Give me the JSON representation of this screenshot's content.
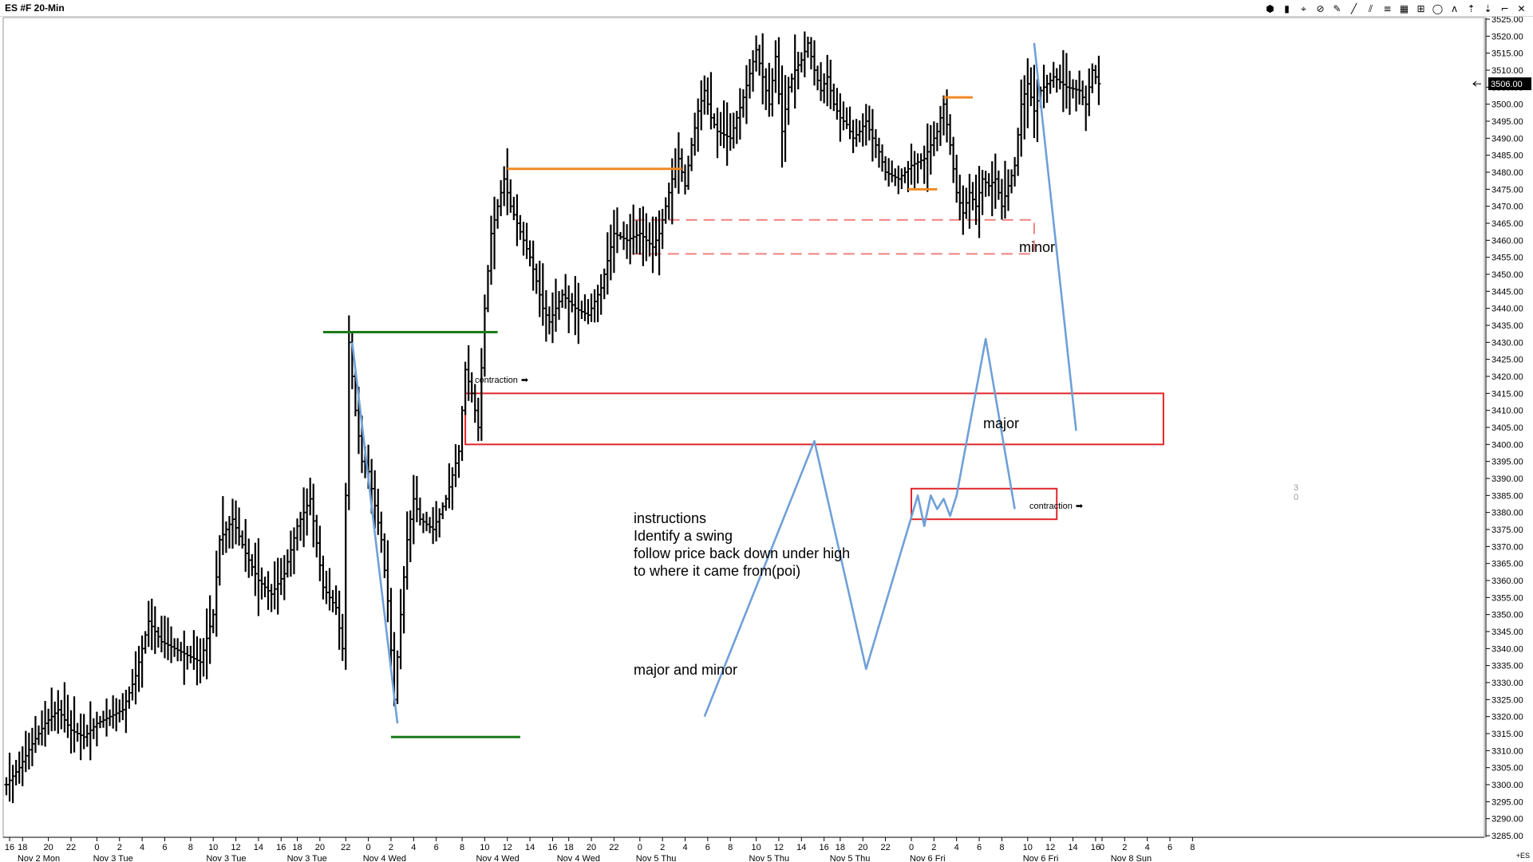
{
  "window": {
    "title": "ES #F 20-Min",
    "toolbar_icons": [
      "palette-icon",
      "candle-icon",
      "cursor-icon",
      "stop-icon",
      "pencil-icon",
      "trendline-icon",
      "channel-icon",
      "parallel-lines-icon",
      "grid-icon",
      "fibonacci-icon",
      "circle-icon",
      "zigzag-icon",
      "arrow-up-icon",
      "arrow-down-icon",
      "bracket-icon",
      "close-icon"
    ],
    "toolbar_glyphs": [
      "⬢",
      "▮",
      "⌖",
      "⊘",
      "✎",
      "╱",
      "⫽",
      "≡",
      "▦",
      "⊞",
      "◯",
      "ᴧ",
      "⇡",
      "⇣",
      "⌐",
      "✕"
    ]
  },
  "annotations": {
    "contraction_left": "contraction",
    "contraction_right": "contraction",
    "major": "major",
    "minor": "minor",
    "instructions": [
      "instructions",
      "Identify a swing",
      "follow price back down under high",
      "to where it came from(poi)"
    ],
    "major_and_minor": "major and minor",
    "scale_side": [
      "3",
      "0"
    ],
    "corner": "+ES"
  },
  "colors": {
    "bars": "#000000",
    "swing_line": "#6fa0d8",
    "green_level": "#1a7a1a",
    "orange_level": "#f08a24",
    "major_box": "#e0262a",
    "minor_box": "#f08080",
    "current_price_bg": "#000000"
  },
  "chart_data": {
    "type": "ohlc-bar",
    "instrument": "ES #F",
    "timeframe": "20-Min",
    "y_axis": {
      "min": 3285,
      "max": 3525,
      "tick_step": 5,
      "ticks": [
        3285,
        3290,
        3295,
        3300,
        3305,
        3310,
        3315,
        3320,
        3325,
        3330,
        3335,
        3340,
        3345,
        3350,
        3355,
        3360,
        3365,
        3370,
        3375,
        3380,
        3385,
        3390,
        3395,
        3400,
        3405,
        3410,
        3415,
        3420,
        3425,
        3430,
        3435,
        3440,
        3445,
        3450,
        3455,
        3460,
        3465,
        3470,
        3475,
        3480,
        3485,
        3490,
        3495,
        3500,
        3505,
        3510,
        3515,
        3520,
        3525
      ],
      "tick_labels": [
        "3285.00",
        "3290.00",
        "3295.00",
        "3300.00",
        "3305.00",
        "3310.00",
        "3315.00",
        "3320.00",
        "3325.00",
        "3330.00",
        "3335.00",
        "3340.00",
        "3345.00",
        "3350.00",
        "3355.00",
        "3360.00",
        "3365.00",
        "3370.00",
        "3375.00",
        "3380.00",
        "3385.00",
        "3390.00",
        "3395.00",
        "3400.00",
        "3405.00",
        "3410.00",
        "3415.00",
        "3420.00",
        "3425.00",
        "3430.00",
        "3435.00",
        "3440.00",
        "3445.00",
        "3450.00",
        "3455.00",
        "3460.00",
        "3465.00",
        "3470.00",
        "3475.00",
        "3480.00",
        "3485.00",
        "3490.00",
        "3495.00",
        "3500.00",
        "3505.00",
        "3510.00",
        "3515.00",
        "3520.00",
        "3525.00"
      ],
      "current_price": 3506,
      "current_price_label": "3506.00"
    },
    "x_axis": {
      "hour_ticks": [
        {
          "bar": 1,
          "label": "16"
        },
        {
          "bar": 5,
          "label": "18"
        },
        {
          "bar": 13,
          "label": "20"
        },
        {
          "bar": 20,
          "label": "22"
        },
        {
          "bar": 28,
          "label": "0"
        },
        {
          "bar": 35,
          "label": "2"
        },
        {
          "bar": 42,
          "label": "4"
        },
        {
          "bar": 49,
          "label": "6"
        },
        {
          "bar": 57,
          "label": "8"
        },
        {
          "bar": 64,
          "label": "10"
        },
        {
          "bar": 71,
          "label": "12"
        },
        {
          "bar": 78,
          "label": "14"
        },
        {
          "bar": 85,
          "label": "16"
        },
        {
          "bar": 90,
          "label": "18"
        },
        {
          "bar": 97,
          "label": "20"
        },
        {
          "bar": 105,
          "label": "22"
        },
        {
          "bar": 112,
          "label": "0"
        },
        {
          "bar": 119,
          "label": "2"
        },
        {
          "bar": 126,
          "label": "4"
        },
        {
          "bar": 133,
          "label": "6"
        },
        {
          "bar": 141,
          "label": "8"
        },
        {
          "bar": 148,
          "label": "10"
        },
        {
          "bar": 155,
          "label": "12"
        },
        {
          "bar": 162,
          "label": "14"
        },
        {
          "bar": 169,
          "label": "16"
        },
        {
          "bar": 174,
          "label": "18"
        },
        {
          "bar": 181,
          "label": "20"
        },
        {
          "bar": 188,
          "label": "22"
        },
        {
          "bar": 196,
          "label": "0"
        },
        {
          "bar": 203,
          "label": "2"
        },
        {
          "bar": 210,
          "label": "4"
        },
        {
          "bar": 217,
          "label": "6"
        },
        {
          "bar": 224,
          "label": "8"
        },
        {
          "bar": 232,
          "label": "10"
        },
        {
          "bar": 239,
          "label": "12"
        },
        {
          "bar": 246,
          "label": "14"
        },
        {
          "bar": 253,
          "label": "16"
        },
        {
          "bar": 258,
          "label": "18"
        },
        {
          "bar": 265,
          "label": "20"
        },
        {
          "bar": 272,
          "label": "22"
        },
        {
          "bar": 280,
          "label": "0"
        },
        {
          "bar": 287,
          "label": "2"
        },
        {
          "bar": 294,
          "label": "4"
        },
        {
          "bar": 301,
          "label": "6"
        },
        {
          "bar": 308,
          "label": "8"
        },
        {
          "bar": 316,
          "label": "10"
        },
        {
          "bar": 323,
          "label": "12"
        },
        {
          "bar": 330,
          "label": "14"
        },
        {
          "bar": 337,
          "label": "16"
        },
        {
          "bar": 339,
          "label": "0"
        },
        {
          "bar": 346,
          "label": "2"
        },
        {
          "bar": 353,
          "label": "4"
        },
        {
          "bar": 360,
          "label": "6"
        },
        {
          "bar": 367,
          "label": "8"
        }
      ],
      "date_labels": [
        {
          "bar": 10,
          "label": "Nov 2 Mon"
        },
        {
          "bar": 33,
          "label": "Nov 3 Tue"
        },
        {
          "bar": 68,
          "label": "Nov 3 Tue"
        },
        {
          "bar": 93,
          "label": "Nov 3 Tue"
        },
        {
          "bar": 117,
          "label": "Nov 4 Wed"
        },
        {
          "bar": 152,
          "label": "Nov 4 Wed"
        },
        {
          "bar": 177,
          "label": "Nov 4 Wed"
        },
        {
          "bar": 201,
          "label": "Nov 5 Thu"
        },
        {
          "bar": 236,
          "label": "Nov 5 Thu"
        },
        {
          "bar": 261,
          "label": "Nov 5 Thu"
        },
        {
          "bar": 285,
          "label": "Nov 6 Fri"
        },
        {
          "bar": 320,
          "label": "Nov 6 Fri"
        },
        {
          "bar": 348,
          "label": "Nov 8 Sun"
        }
      ]
    },
    "price_path": [
      [
        0,
        3300
      ],
      [
        4,
        3305
      ],
      [
        8,
        3312
      ],
      [
        12,
        3318
      ],
      [
        16,
        3322
      ],
      [
        20,
        3316
      ],
      [
        24,
        3314
      ],
      [
        28,
        3318
      ],
      [
        32,
        3320
      ],
      [
        36,
        3322
      ],
      [
        40,
        3332
      ],
      [
        44,
        3348
      ],
      [
        48,
        3342
      ],
      [
        52,
        3340
      ],
      [
        56,
        3338
      ],
      [
        60,
        3336
      ],
      [
        64,
        3350
      ],
      [
        66,
        3372
      ],
      [
        70,
        3378
      ],
      [
        74,
        3368
      ],
      [
        78,
        3360
      ],
      [
        82,
        3356
      ],
      [
        86,
        3362
      ],
      [
        90,
        3376
      ],
      [
        94,
        3384
      ],
      [
        98,
        3358
      ],
      [
        102,
        3352
      ],
      [
        104,
        3340
      ],
      [
        106,
        3430
      ],
      [
        108,
        3410
      ],
      [
        110,
        3395
      ],
      [
        112,
        3392
      ],
      [
        114,
        3382
      ],
      [
        116,
        3372
      ],
      [
        118,
        3354
      ],
      [
        120,
        3325
      ],
      [
        122,
        3350
      ],
      [
        124,
        3372
      ],
      [
        126,
        3384
      ],
      [
        128,
        3378
      ],
      [
        132,
        3375
      ],
      [
        136,
        3384
      ],
      [
        140,
        3398
      ],
      [
        142,
        3422
      ],
      [
        144,
        3415
      ],
      [
        146,
        3405
      ],
      [
        148,
        3440
      ],
      [
        150,
        3462
      ],
      [
        152,
        3470
      ],
      [
        154,
        3478
      ],
      [
        156,
        3470
      ],
      [
        158,
        3465
      ],
      [
        160,
        3460
      ],
      [
        162,
        3455
      ],
      [
        164,
        3448
      ],
      [
        166,
        3440
      ],
      [
        168,
        3436
      ],
      [
        172,
        3444
      ],
      [
        176,
        3440
      ],
      [
        180,
        3438
      ],
      [
        184,
        3446
      ],
      [
        188,
        3462
      ],
      [
        192,
        3460
      ],
      [
        196,
        3462
      ],
      [
        200,
        3458
      ],
      [
        202,
        3462
      ],
      [
        204,
        3470
      ],
      [
        206,
        3478
      ],
      [
        208,
        3484
      ],
      [
        210,
        3476
      ],
      [
        212,
        3488
      ],
      [
        214,
        3498
      ],
      [
        216,
        3504
      ],
      [
        218,
        3496
      ],
      [
        220,
        3492
      ],
      [
        224,
        3490
      ],
      [
        228,
        3502
      ],
      [
        232,
        3516
      ],
      [
        234,
        3508
      ],
      [
        236,
        3500
      ],
      [
        238,
        3514
      ],
      [
        240,
        3492
      ],
      [
        242,
        3505
      ],
      [
        244,
        3510
      ],
      [
        246,
        3513
      ],
      [
        248,
        3518
      ],
      [
        250,
        3510
      ],
      [
        252,
        3504
      ],
      [
        254,
        3508
      ],
      [
        256,
        3500
      ],
      [
        258,
        3496
      ],
      [
        260,
        3494
      ],
      [
        262,
        3490
      ],
      [
        264,
        3492
      ],
      [
        266,
        3495
      ],
      [
        268,
        3490
      ],
      [
        270,
        3486
      ],
      [
        272,
        3480
      ],
      [
        276,
        3478
      ],
      [
        280,
        3482
      ],
      [
        284,
        3484
      ],
      [
        288,
        3492
      ],
      [
        290,
        3500
      ],
      [
        292,
        3488
      ],
      [
        294,
        3474
      ],
      [
        296,
        3468
      ],
      [
        298,
        3474
      ],
      [
        300,
        3470
      ],
      [
        302,
        3478
      ],
      [
        304,
        3476
      ],
      [
        306,
        3478
      ],
      [
        308,
        3470
      ],
      [
        310,
        3476
      ],
      [
        312,
        3482
      ],
      [
        314,
        3500
      ],
      [
        316,
        3506
      ],
      [
        318,
        3498
      ],
      [
        320,
        3504
      ],
      [
        324,
        3508
      ],
      [
        328,
        3505
      ],
      [
        332,
        3504
      ],
      [
        334,
        3500
      ],
      [
        336,
        3510
      ],
      [
        338,
        3506
      ]
    ],
    "levels": [
      {
        "name": "green-high",
        "price": 3433,
        "from_bar": 98,
        "to_bar": 152,
        "color": "green"
      },
      {
        "name": "green-low",
        "price": 3314,
        "from_bar": 119,
        "to_bar": 159,
        "color": "green"
      },
      {
        "name": "orange-high",
        "price": 3481,
        "from_bar": 155,
        "to_bar": 209,
        "color": "orange"
      },
      {
        "name": "orange-mid",
        "price": 3502,
        "from_bar": 290,
        "to_bar": 299,
        "color": "orange"
      },
      {
        "name": "orange-low",
        "price": 3475,
        "from_bar": 279,
        "to_bar": 288,
        "color": "orange"
      }
    ],
    "zones": [
      {
        "name": "major",
        "from_bar": 142,
        "to_bar": 358,
        "top": 3415,
        "bottom": 3400,
        "style": "solid"
      },
      {
        "name": "minor",
        "from_bar": 194,
        "to_bar": 318,
        "top": 3466,
        "bottom": 3456,
        "style": "dashed"
      },
      {
        "name": "contraction-box",
        "from_bar": 280,
        "to_bar": 325,
        "top": 3387,
        "bottom": 3378,
        "style": "solid"
      }
    ],
    "swing_lines": [
      [
        [
          107,
          3430
        ],
        [
          121,
          3318
        ]
      ],
      [
        [
          216,
          3320
        ],
        [
          250,
          3401
        ],
        [
          266,
          3334
        ],
        [
          282,
          3385
        ],
        [
          284,
          3376
        ],
        [
          286,
          3385
        ],
        [
          288,
          3381
        ],
        [
          290,
          3384
        ],
        [
          292,
          3379
        ],
        [
          294,
          3385
        ],
        [
          303,
          3431
        ],
        [
          312,
          3381
        ]
      ],
      [
        [
          318,
          3518
        ],
        [
          331,
          3404
        ]
      ]
    ]
  }
}
